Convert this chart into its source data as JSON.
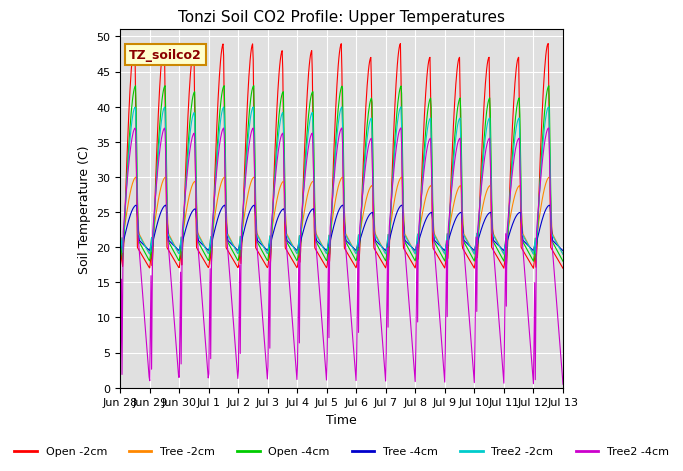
{
  "title": "Tonzi Soil CO2 Profile: Upper Temperatures",
  "xlabel": "Time",
  "ylabel": "Soil Temperature (C)",
  "ylim": [
    0,
    51
  ],
  "yticks": [
    0,
    5,
    10,
    15,
    20,
    25,
    30,
    35,
    40,
    45,
    50
  ],
  "annotation_text": "TZ_soilco2",
  "background_color": "#e0e0e0",
  "series": [
    {
      "label": "Open -2cm",
      "color": "#ff0000"
    },
    {
      "label": "Tree -2cm",
      "color": "#ff8800"
    },
    {
      "label": "Open -4cm",
      "color": "#00cc00"
    },
    {
      "label": "Tree -4cm",
      "color": "#0000cc"
    },
    {
      "label": "Tree2 -2cm",
      "color": "#00cccc"
    },
    {
      "label": "Tree2 -4cm",
      "color": "#cc00cc"
    }
  ],
  "xticklabels": [
    "Jun 28",
    "Jun 29",
    "Jun 30",
    "Jul 1",
    "Jul 2",
    "Jul 3",
    "Jul 4",
    "Jul 5",
    "Jul 6",
    "Jul 7",
    "Jul 8",
    "Jul 9",
    "Jul 10",
    "Jul 11",
    "Jul 12",
    "Jul 13"
  ],
  "n_days": 15,
  "points_per_day": 48
}
